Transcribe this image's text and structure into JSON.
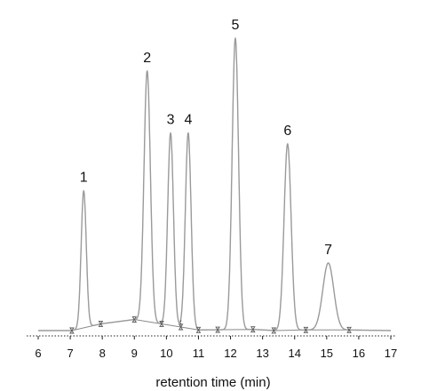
{
  "chart_data": {
    "type": "line",
    "xlabel": "retention time (min)",
    "ylabel": "",
    "title": "",
    "xlim": [
      6,
      17
    ],
    "ylim": [
      0,
      100
    ],
    "xticks": [
      6,
      7,
      8,
      9,
      10,
      11,
      12,
      13,
      14,
      15,
      16,
      17
    ],
    "grid": false,
    "colors": {
      "signal": "#9a9a9a",
      "baseline": "#8a8a8a",
      "axis": "#222222",
      "marker": "#555555",
      "text": "#111111"
    },
    "peaks": [
      {
        "label": "1",
        "retention_time": 7.42,
        "height": 47,
        "width": 0.08
      },
      {
        "label": "2",
        "retention_time": 9.4,
        "height": 86,
        "width": 0.1
      },
      {
        "label": "3",
        "retention_time": 10.13,
        "height": 66,
        "width": 0.09
      },
      {
        "label": "4",
        "retention_time": 10.68,
        "height": 67,
        "width": 0.09
      },
      {
        "label": "5",
        "retention_time": 12.15,
        "height": 100,
        "width": 0.1
      },
      {
        "label": "6",
        "retention_time": 13.78,
        "height": 64,
        "width": 0.11
      },
      {
        "label": "7",
        "retention_time": 15.05,
        "height": 23,
        "width": 0.17
      }
    ],
    "baseline": [
      {
        "x": 6.0,
        "y": 0.0
      },
      {
        "x": 7.05,
        "y": 0.0
      },
      {
        "x": 7.95,
        "y": 2.3
      },
      {
        "x": 9.0,
        "y": 3.8
      },
      {
        "x": 10.3,
        "y": 1.5
      },
      {
        "x": 11.0,
        "y": 0.2
      },
      {
        "x": 12.7,
        "y": 0.4
      },
      {
        "x": 13.4,
        "y": 0.0
      },
      {
        "x": 14.3,
        "y": 0.2
      },
      {
        "x": 15.7,
        "y": 0.2
      },
      {
        "x": 17.0,
        "y": 0.0
      }
    ],
    "integration_markers": [
      7.05,
      7.95,
      9.0,
      9.85,
      10.45,
      11.0,
      11.6,
      12.7,
      13.35,
      14.35,
      15.7
    ],
    "drop_line": {
      "x": 10.45
    }
  }
}
